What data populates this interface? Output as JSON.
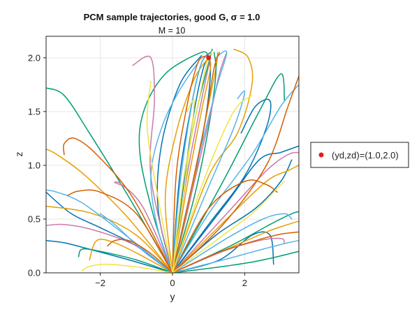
{
  "chart_data": {
    "type": "line",
    "title": "PCM sample trajectories, good G, σ = 1.0",
    "subtitle": "M = 10",
    "xlabel": "y",
    "ylabel": "z",
    "xlim": [
      -3.5,
      3.5
    ],
    "ylim": [
      0.0,
      2.2
    ],
    "xticks": [
      -2,
      0,
      2
    ],
    "xtick_labels": [
      "−2",
      "0",
      "2"
    ],
    "yticks": [
      0.0,
      0.5,
      1.0,
      1.5,
      2.0
    ],
    "ytick_labels": [
      "0.0",
      "0.5",
      "1.0",
      "1.5",
      "2.0"
    ],
    "grid": true,
    "legend_position": "outside-right",
    "legend": [
      {
        "label": "(yd,zd)=(1.0,2.0)",
        "color": "#e8191b",
        "marker": "circle"
      }
    ],
    "target_point": {
      "x": 1.0,
      "y": 2.0,
      "color": "#e8191b"
    },
    "palette": [
      "#0072b2",
      "#e69f00",
      "#009e73",
      "#cc79a7",
      "#56b4e9",
      "#d55e00",
      "#f0e442"
    ],
    "series": [
      {
        "color": "#0072b2",
        "x": [
          0.0,
          0.3,
          0.6,
          0.85,
          1.0
        ],
        "y": [
          0.0,
          0.8,
          1.5,
          1.9,
          2.0
        ]
      },
      {
        "color": "#0072b2",
        "x": [
          0.0,
          0.5,
          0.9,
          1.05,
          1.0
        ],
        "y": [
          0.0,
          0.7,
          1.4,
          1.85,
          2.02
        ]
      },
      {
        "color": "#0072b2",
        "x": [
          0.0,
          1.0,
          2.0,
          2.6,
          2.7,
          2.3,
          1.9
        ],
        "y": [
          0.0,
          0.45,
          0.9,
          1.35,
          1.6,
          1.55,
          1.3
        ]
      },
      {
        "color": "#0072b2",
        "x": [
          0.0,
          1.2,
          2.3,
          3.0,
          3.3
        ],
        "y": [
          0.0,
          0.35,
          0.6,
          0.85,
          1.05
        ]
      },
      {
        "color": "#0072b2",
        "x": [
          0.0,
          -1.0,
          -2.0,
          -2.8,
          -3.5
        ],
        "y": [
          0.0,
          0.25,
          0.42,
          0.55,
          0.75
        ]
      },
      {
        "color": "#0072b2",
        "x": [
          0.0,
          -1.2,
          -2.3,
          -3.0,
          -3.5
        ],
        "y": [
          0.0,
          0.12,
          0.22,
          0.28,
          0.3
        ]
      },
      {
        "color": "#0072b2",
        "x": [
          0.0,
          1.3,
          2.2,
          2.7,
          2.8
        ],
        "y": [
          0.0,
          0.12,
          0.35,
          0.35,
          0.08
        ]
      },
      {
        "color": "#0072b2",
        "x": [
          0.0,
          0.2,
          0.55,
          0.8,
          1.05
        ],
        "y": [
          0.0,
          0.9,
          1.6,
          1.95,
          2.05
        ]
      },
      {
        "color": "#0072b2",
        "x": [
          0.0,
          -0.4,
          -0.3,
          0.2,
          0.8
        ],
        "y": [
          0.0,
          0.6,
          1.2,
          1.75,
          2.02
        ]
      },
      {
        "color": "#0072b2",
        "x": [
          0.0,
          1.5,
          2.4,
          3.0,
          3.5
        ],
        "y": [
          0.0,
          0.65,
          1.05,
          1.12,
          1.18
        ]
      },
      {
        "color": "#e69f00",
        "x": [
          0.0,
          -1.2,
          -2.4,
          -3.2,
          -3.5
        ],
        "y": [
          0.0,
          0.5,
          0.9,
          1.1,
          1.15
        ]
      },
      {
        "color": "#e69f00",
        "x": [
          0.0,
          -1.0,
          -2.2,
          -3.5
        ],
        "y": [
          0.0,
          0.35,
          0.55,
          0.62
        ]
      },
      {
        "color": "#e69f00",
        "x": [
          0.0,
          0.4,
          0.8,
          1.05,
          1.0
        ],
        "y": [
          0.0,
          0.8,
          1.5,
          1.9,
          2.0
        ]
      },
      {
        "color": "#e69f00",
        "x": [
          0.0,
          1.0,
          1.8,
          2.2,
          2.1,
          1.7
        ],
        "y": [
          0.0,
          0.9,
          1.3,
          1.75,
          2.0,
          2.08
        ]
      },
      {
        "color": "#e69f00",
        "x": [
          0.0,
          1.5,
          2.6,
          3.2,
          3.5
        ],
        "y": [
          0.0,
          0.5,
          0.85,
          0.95,
          1.0
        ]
      },
      {
        "color": "#e69f00",
        "x": [
          0.0,
          1.5,
          2.6,
          3.2,
          3.5
        ],
        "y": [
          0.0,
          0.22,
          0.38,
          0.45,
          0.48
        ]
      },
      {
        "color": "#e69f00",
        "x": [
          0.0,
          -0.8,
          -1.6,
          -2.1,
          -2.3
        ],
        "y": [
          0.0,
          0.15,
          0.28,
          0.3,
          0.12
        ]
      },
      {
        "color": "#e69f00",
        "x": [
          0.0,
          0.5,
          0.9,
          1.2,
          1.25
        ],
        "y": [
          0.0,
          0.7,
          1.4,
          1.9,
          2.05
        ]
      },
      {
        "color": "#e69f00",
        "x": [
          0.0,
          -0.2,
          0.1,
          0.6,
          1.0
        ],
        "y": [
          0.0,
          0.7,
          1.3,
          1.8,
          2.0
        ]
      },
      {
        "color": "#009e73",
        "x": [
          0.0,
          -1.2,
          -2.3,
          -3.0,
          -3.5
        ],
        "y": [
          0.0,
          0.7,
          1.3,
          1.65,
          1.72
        ]
      },
      {
        "color": "#009e73",
        "x": [
          0.0,
          -0.5,
          -0.9,
          -0.8,
          -0.2,
          0.8,
          1.0
        ],
        "y": [
          0.0,
          0.5,
          1.1,
          1.5,
          1.85,
          2.05,
          2.0
        ]
      },
      {
        "color": "#009e73",
        "x": [
          0.0,
          1.4,
          2.4,
          3.0,
          3.1
        ],
        "y": [
          0.0,
          0.85,
          1.5,
          1.85,
          1.6
        ]
      },
      {
        "color": "#009e73",
        "x": [
          0.0,
          1.6,
          2.7,
          3.3,
          3.5
        ],
        "y": [
          0.0,
          0.25,
          0.45,
          0.55,
          0.57
        ]
      },
      {
        "color": "#009e73",
        "x": [
          0.0,
          -1.0,
          -2.0,
          -2.5,
          -2.6
        ],
        "y": [
          0.0,
          0.12,
          0.2,
          0.22,
          0.15
        ]
      },
      {
        "color": "#009e73",
        "x": [
          0.0,
          0.3,
          0.7,
          1.0,
          1.1
        ],
        "y": [
          0.0,
          0.85,
          1.55,
          1.95,
          2.08
        ]
      },
      {
        "color": "#009e73",
        "x": [
          0.0,
          0.6,
          1.0,
          1.2,
          1.15
        ],
        "y": [
          0.0,
          0.7,
          1.35,
          1.85,
          2.05
        ]
      },
      {
        "color": "#009e73",
        "x": [
          0.0,
          1.2,
          2.2,
          2.9,
          3.5
        ],
        "y": [
          0.0,
          0.05,
          0.1,
          0.15,
          0.2
        ]
      },
      {
        "color": "#cc79a7",
        "x": [
          0.0,
          -1.0,
          -2.2,
          -3.0,
          -3.5
        ],
        "y": [
          0.0,
          0.25,
          0.4,
          0.45,
          0.44
        ]
      },
      {
        "color": "#cc79a7",
        "x": [
          0.0,
          -0.6,
          -0.5,
          -0.6,
          -1.1
        ],
        "y": [
          0.0,
          0.9,
          1.6,
          2.0,
          1.93
        ]
      },
      {
        "color": "#cc79a7",
        "x": [
          0.0,
          -0.8,
          -1.4,
          -1.6,
          -1.3
        ],
        "y": [
          0.0,
          0.6,
          0.82,
          0.84,
          0.8
        ]
      },
      {
        "color": "#cc79a7",
        "x": [
          0.0,
          0.4,
          0.8,
          1.05
        ],
        "y": [
          0.0,
          0.9,
          1.6,
          2.0
        ]
      },
      {
        "color": "#cc79a7",
        "x": [
          0.0,
          1.5,
          2.6,
          3.2,
          3.5
        ],
        "y": [
          0.0,
          0.55,
          0.95,
          1.1,
          1.12
        ]
      },
      {
        "color": "#cc79a7",
        "x": [
          0.0,
          1.4,
          2.4,
          3.0,
          3.1
        ],
        "y": [
          0.0,
          0.2,
          0.3,
          0.32,
          0.28
        ]
      },
      {
        "color": "#cc79a7",
        "x": [
          0.0,
          0.5,
          1.0,
          1.3,
          1.5
        ],
        "y": [
          0.0,
          0.7,
          1.4,
          1.85,
          2.05
        ]
      },
      {
        "color": "#56b4e9",
        "x": [
          0.0,
          -1.3,
          -2.5,
          -3.2,
          -3.5
        ],
        "y": [
          0.0,
          0.35,
          0.65,
          0.75,
          0.77
        ]
      },
      {
        "color": "#56b4e9",
        "x": [
          0.0,
          -0.8,
          -1.6,
          -2.0,
          -1.8
        ],
        "y": [
          0.0,
          0.2,
          0.45,
          0.55,
          0.5
        ]
      },
      {
        "color": "#56b4e9",
        "x": [
          0.0,
          0.2,
          0.5,
          0.8,
          1.0
        ],
        "y": [
          0.0,
          0.8,
          1.5,
          1.95,
          2.02
        ]
      },
      {
        "color": "#56b4e9",
        "x": [
          0.0,
          1.0,
          2.2,
          3.0,
          3.5
        ],
        "y": [
          0.0,
          0.55,
          1.1,
          1.55,
          1.75
        ]
      },
      {
        "color": "#56b4e9",
        "x": [
          0.0,
          1.5,
          2.5,
          3.1,
          3.3
        ],
        "y": [
          0.0,
          0.32,
          0.5,
          0.55,
          0.5
        ]
      },
      {
        "color": "#56b4e9",
        "x": [
          0.0,
          0.6,
          1.2,
          1.5,
          1.2
        ],
        "y": [
          0.0,
          0.9,
          1.7,
          2.05,
          2.0
        ]
      },
      {
        "color": "#56b4e9",
        "x": [
          0.0,
          1.0,
          1.7,
          2.0,
          1.8
        ],
        "y": [
          0.0,
          0.8,
          1.35,
          1.68,
          1.62
        ]
      },
      {
        "color": "#56b4e9",
        "x": [
          0.0,
          -0.4,
          -0.6,
          -0.3,
          0.2,
          0.7
        ],
        "y": [
          0.0,
          0.4,
          0.9,
          1.35,
          1.7,
          1.95
        ]
      },
      {
        "color": "#56b4e9",
        "x": [
          0.0,
          1.4,
          2.5,
          3.2,
          3.5
        ],
        "y": [
          0.0,
          0.12,
          0.22,
          0.28,
          0.3
        ]
      },
      {
        "color": "#d55e00",
        "x": [
          0.0,
          -1.1,
          -2.1,
          -2.7,
          -3.0,
          -3.0
        ],
        "y": [
          0.0,
          0.7,
          1.1,
          1.25,
          1.2,
          1.1
        ]
      },
      {
        "color": "#d55e00",
        "x": [
          0.0,
          -1.0,
          -2.0,
          -2.6,
          -2.9
        ],
        "y": [
          0.0,
          0.55,
          0.75,
          0.76,
          0.72
        ]
      },
      {
        "color": "#d55e00",
        "x": [
          0.0,
          1.4,
          2.6,
          3.2,
          3.5
        ],
        "y": [
          0.0,
          0.45,
          1.0,
          1.55,
          1.83
        ]
      },
      {
        "color": "#d55e00",
        "x": [
          0.0,
          1.2,
          2.3,
          3.0,
          3.5
        ],
        "y": [
          0.0,
          0.18,
          0.3,
          0.36,
          0.38
        ]
      },
      {
        "color": "#d55e00",
        "x": [
          0.0,
          -0.6,
          -1.2,
          -1.6,
          -1.8
        ],
        "y": [
          0.0,
          0.18,
          0.3,
          0.3,
          0.25
        ]
      },
      {
        "color": "#d55e00",
        "x": [
          0.0,
          0.5,
          0.9,
          1.15,
          1.3
        ],
        "y": [
          0.0,
          0.75,
          1.4,
          1.9,
          2.05
        ]
      },
      {
        "color": "#d55e00",
        "x": [
          0.0,
          0.1,
          0.4,
          0.7,
          0.95
        ],
        "y": [
          0.0,
          0.9,
          1.55,
          1.95,
          2.02
        ]
      },
      {
        "color": "#d55e00",
        "x": [
          0.0,
          1.0,
          2.0,
          2.6,
          2.9
        ],
        "y": [
          0.0,
          0.6,
          0.85,
          0.82,
          0.75
        ]
      },
      {
        "color": "#f0e442",
        "x": [
          0.0,
          -0.4,
          -0.7,
          -0.6
        ],
        "y": [
          0.0,
          0.7,
          1.35,
          1.78
        ]
      },
      {
        "color": "#f0e442",
        "x": [
          0.0,
          0.3,
          0.5,
          0.6,
          0.4
        ],
        "y": [
          0.0,
          0.7,
          1.25,
          1.6,
          1.5
        ]
      },
      {
        "color": "#f0e442",
        "x": [
          0.0,
          0.8,
          1.4,
          1.8,
          2.2
        ],
        "y": [
          0.0,
          0.8,
          1.3,
          1.55,
          1.65
        ]
      },
      {
        "color": "#f0e442",
        "x": [
          0.0,
          1.2,
          2.2,
          2.8,
          3.1
        ],
        "y": [
          0.0,
          0.3,
          0.55,
          0.75,
          0.85
        ]
      },
      {
        "color": "#f0e442",
        "x": [
          0.0,
          0.3,
          0.7,
          0.95,
          1.1
        ],
        "y": [
          0.0,
          0.85,
          1.55,
          1.95,
          2.06
        ]
      },
      {
        "color": "#f0e442",
        "x": [
          0.0,
          -0.9,
          -1.8,
          -2.3,
          -2.5
        ],
        "y": [
          0.0,
          0.05,
          0.08,
          0.06,
          0.02
        ]
      }
    ]
  }
}
